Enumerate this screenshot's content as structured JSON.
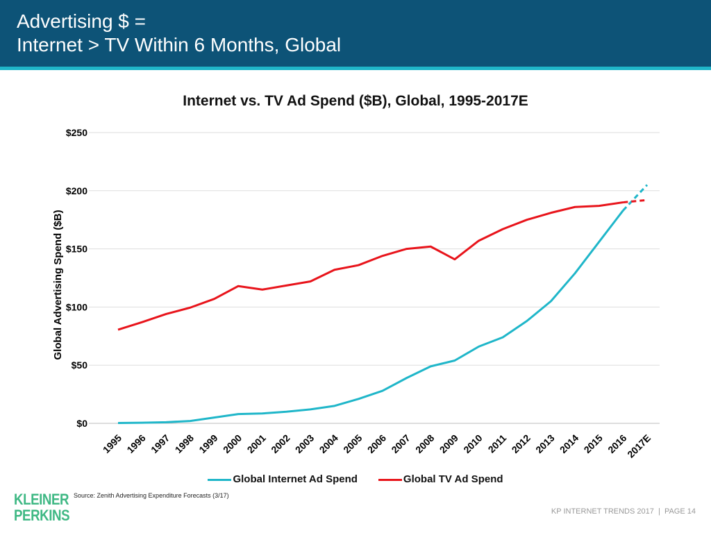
{
  "header": {
    "title_line1": "Advertising $ =",
    "title_line2": "Internet > TV Within 6 Months, Global"
  },
  "colors": {
    "header_bg": "#0d5377",
    "accent": "#1fb6c9",
    "internet": "#1fb6c9",
    "tv": "#e8141b",
    "logo": "#3fb884"
  },
  "chart_data": {
    "type": "line",
    "title": "Internet vs. TV Ad Spend ($B), Global, 1995-2017E",
    "ylabel": "Global Advertising Spend ($B)",
    "xlabel": "",
    "ylim": [
      0,
      250
    ],
    "yticks": [
      "$0",
      "$50",
      "$100",
      "$150",
      "$200",
      "$250"
    ],
    "grid": true,
    "legend_position": "bottom",
    "categories": [
      "1995",
      "1996",
      "1997",
      "1998",
      "1999",
      "2000",
      "2001",
      "2002",
      "2003",
      "2004",
      "2005",
      "2006",
      "2007",
      "2008",
      "2009",
      "2010",
      "2011",
      "2012",
      "2013",
      "2014",
      "2015",
      "2016",
      "2017E"
    ],
    "series": [
      {
        "name": "Global Internet Ad Spend",
        "color": "#1fb6c9",
        "dashed_from": "2016",
        "values": [
          0.3,
          0.5,
          1,
          2,
          5,
          8,
          8.5,
          10,
          12,
          15,
          21,
          28,
          39,
          49,
          54,
          66,
          74,
          88,
          105,
          129,
          156,
          183,
          205
        ]
      },
      {
        "name": "Global TV Ad Spend",
        "color": "#e8141b",
        "dashed_from": "2016",
        "values": [
          80.5,
          87,
          94,
          99.5,
          107,
          118,
          115,
          118.5,
          122,
          132,
          136,
          144,
          150,
          152,
          141,
          157,
          167,
          175,
          181,
          186,
          187,
          190,
          192
        ]
      }
    ]
  },
  "footer": {
    "source": "Source: Zenith Advertising Expenditure Forecasts (3/17)",
    "logo_line1": "KLEINER",
    "logo_line2": "PERKINS",
    "page": "KP INTERNET TRENDS 2017  |  PAGE 14"
  }
}
